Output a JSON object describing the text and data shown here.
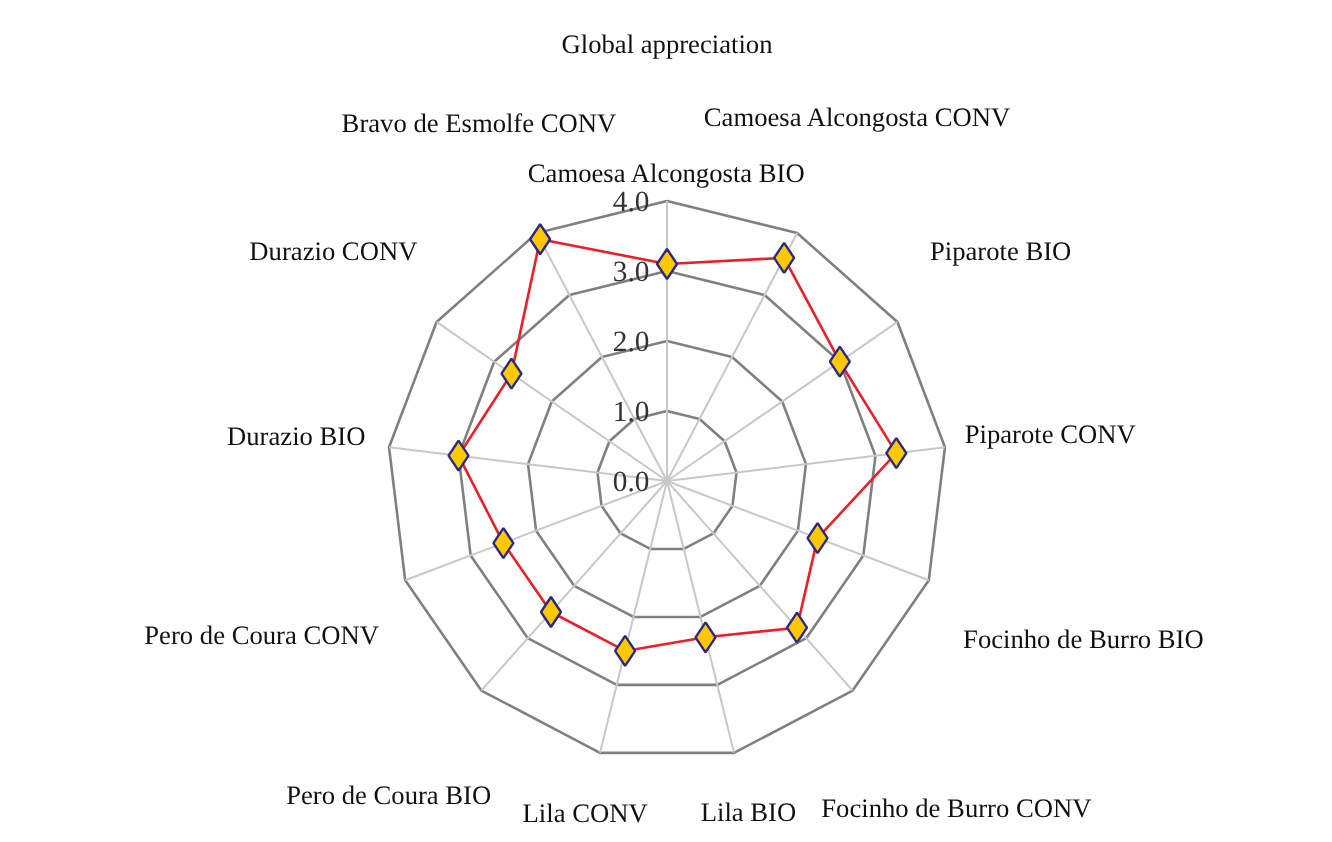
{
  "chart_data": {
    "type": "radar",
    "title": "Global appreciation",
    "categories": [
      "Camoesa Alcongosta BIO",
      "Camoesa Alcongosta CONV",
      "Piparote BIO",
      "Piparote CONV",
      "Focinho de Burro BIO",
      "Focinho de Burro CONV",
      "Lila BIO",
      "Lila CONV",
      "Pero de Coura BIO",
      "Pero de Coura CONV",
      "Durazio BIO",
      "Durazio CONV",
      "Bravo de Esmolfe CONV"
    ],
    "series": [
      {
        "color": "#e8202a",
        "values": [
          3.1,
          3.6,
          3.0,
          3.3,
          2.3,
          2.8,
          2.3,
          2.5,
          2.5,
          2.5,
          3.0,
          2.7,
          3.9
        ]
      }
    ],
    "ylim": [
      0,
      4
    ],
    "yticks": [
      {
        "value": 0,
        "label": "0.0"
      },
      {
        "value": 1,
        "label": "1.0"
      },
      {
        "value": 2,
        "label": "2.0"
      },
      {
        "value": 3,
        "label": "3.0"
      },
      {
        "value": 4,
        "label": "4.0"
      }
    ],
    "grid": true,
    "marker": "diamond",
    "line_style": "solid"
  }
}
